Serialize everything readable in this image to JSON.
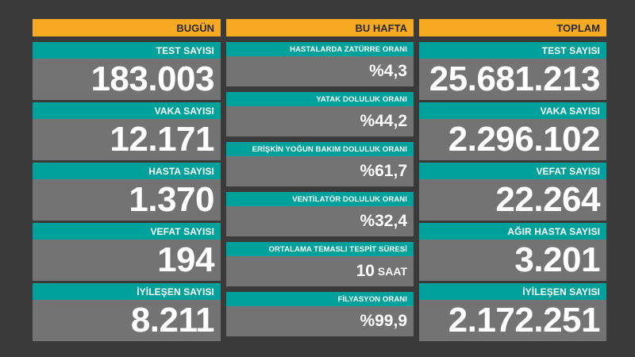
{
  "today": {
    "header": "BUGÜN",
    "items": [
      {
        "label": "TEST SAYISI",
        "value": "183.003"
      },
      {
        "label": "VAKA SAYISI",
        "value": "12.171"
      },
      {
        "label": "HASTA SAYISI",
        "value": "1.370"
      },
      {
        "label": "VEFAT SAYISI",
        "value": "194"
      },
      {
        "label": "İYİLEŞEN SAYISI",
        "value": "8.211"
      }
    ]
  },
  "week": {
    "header": "BU HAFTA",
    "items": [
      {
        "label": "HASTALARDA ZATÜRRE ORANI",
        "value": "%4,3"
      },
      {
        "label": "YATAK DOLULUK ORANI",
        "value": "%44,2"
      },
      {
        "label": "ERİŞKİN YOĞUN BAKIM DOLULUK ORANI",
        "value": "%61,7"
      },
      {
        "label": "VENTİLATÖR DOLULUK ORANI",
        "value": "%32,4"
      },
      {
        "label": "ORTALAMA TEMASLI TESPİT SÜRESİ",
        "value": "10",
        "unit": "SAAT"
      },
      {
        "label": "FİLYASYON ORANI",
        "value": "%99,9"
      }
    ]
  },
  "total": {
    "header": "TOPLAM",
    "items": [
      {
        "label": "TEST SAYISI",
        "value": "25.681.213"
      },
      {
        "label": "VAKA SAYISI",
        "value": "2.296.102"
      },
      {
        "label": "VEFAT SAYISI",
        "value": "22.264"
      },
      {
        "label": "AĞIR HASTA SAYISI",
        "value": "3.201"
      },
      {
        "label": "İYİLEŞEN SAYISI",
        "value": "2.172.251"
      }
    ]
  },
  "colors": {
    "background": "#3a3a3a",
    "header": "#f7a922",
    "label": "#00a19a",
    "value": "#737373"
  }
}
